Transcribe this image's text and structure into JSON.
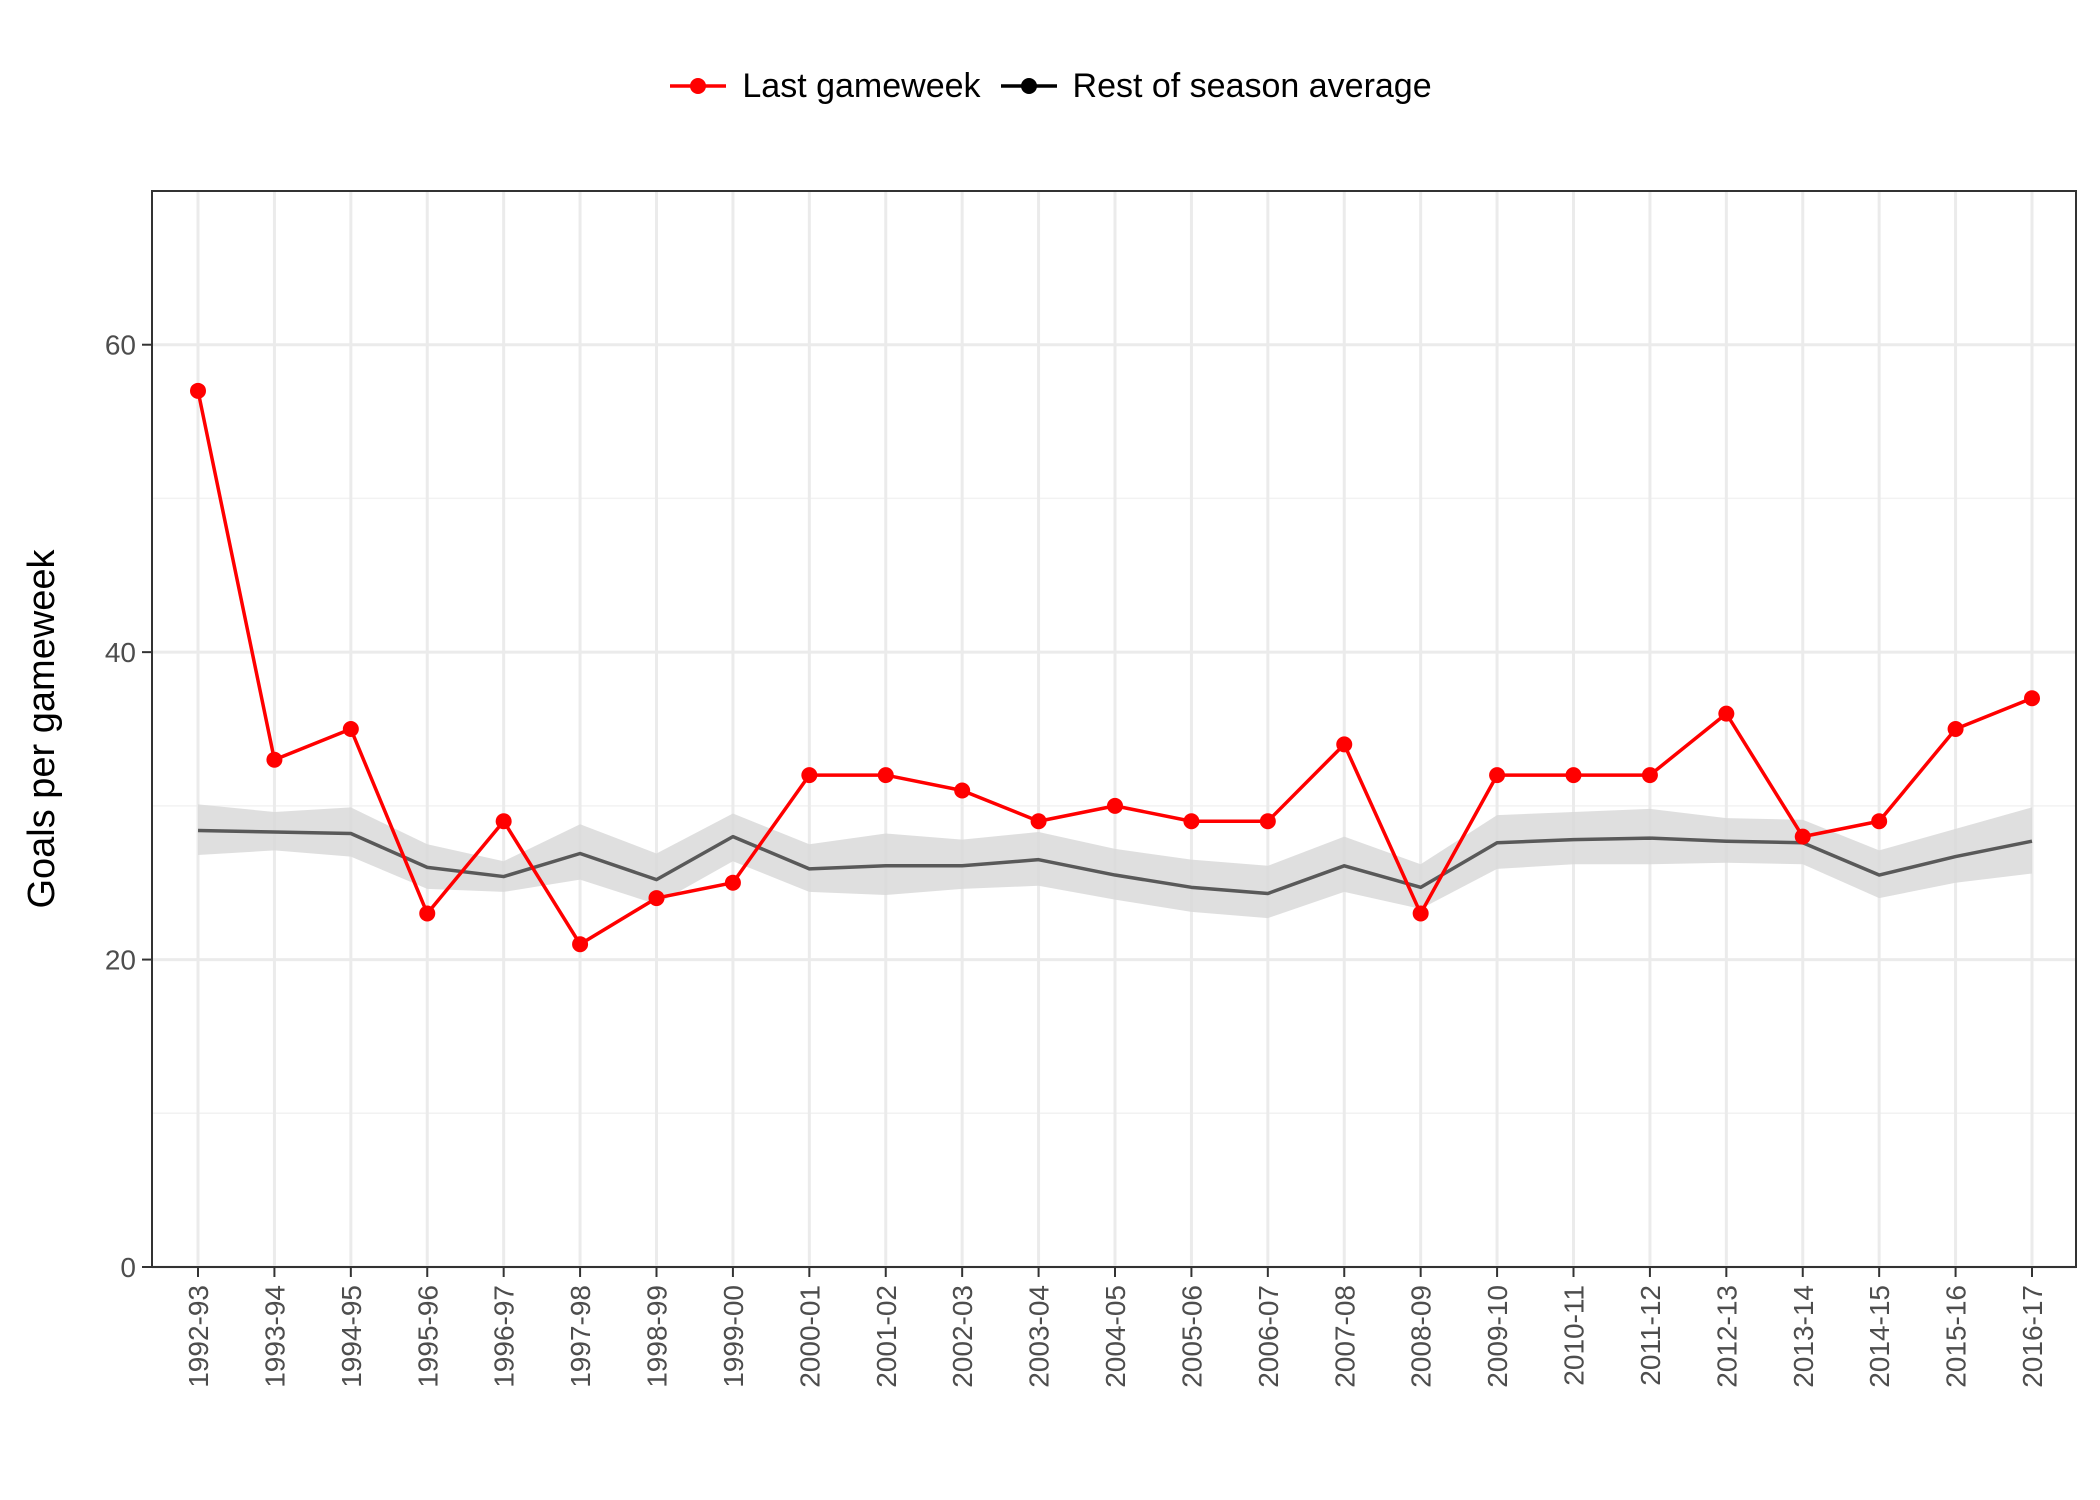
{
  "chart_data": {
    "type": "line",
    "title": "",
    "xlabel": "",
    "ylabel": "Goals per gameweek",
    "ylim": [
      0,
      70
    ],
    "yticks": [
      0,
      20,
      40,
      60
    ],
    "legend_position": "top",
    "grid": true,
    "categories": [
      "1992-93",
      "1993-94",
      "1994-95",
      "1995-96",
      "1996-97",
      "1997-98",
      "1998-99",
      "1999-00",
      "2000-01",
      "2001-02",
      "2002-03",
      "2003-04",
      "2004-05",
      "2005-06",
      "2006-07",
      "2007-08",
      "2008-09",
      "2009-10",
      "2010-11",
      "2011-12",
      "2012-13",
      "2013-14",
      "2014-15",
      "2015-16",
      "2016-17"
    ],
    "series": [
      {
        "name": "Last gameweek",
        "color": "#ff0000",
        "values": [
          57,
          33,
          35,
          23,
          29,
          21,
          24,
          25,
          32,
          32,
          31,
          29,
          30,
          29,
          29,
          34,
          23,
          32,
          32,
          32,
          36,
          28,
          29,
          35,
          37
        ]
      },
      {
        "name": "Rest of season average",
        "color": "#595959",
        "values": [
          28.4,
          28.3,
          28.2,
          26.0,
          25.4,
          26.9,
          25.2,
          28.0,
          25.9,
          26.1,
          26.1,
          26.5,
          25.5,
          24.7,
          24.3,
          26.1,
          24.7,
          27.6,
          27.8,
          27.9,
          27.7,
          27.6,
          25.5,
          26.7,
          27.7
        ],
        "band_lower": [
          26.8,
          27.1,
          26.7,
          24.6,
          24.4,
          25.2,
          23.6,
          26.4,
          24.4,
          24.2,
          24.6,
          24.8,
          23.9,
          23.1,
          22.7,
          24.4,
          23.3,
          25.9,
          26.2,
          26.2,
          26.3,
          26.2,
          24.0,
          25.0,
          25.6
        ],
        "band_upper": [
          30.1,
          29.6,
          29.9,
          27.5,
          26.4,
          28.8,
          26.9,
          29.5,
          27.5,
          28.2,
          27.8,
          28.3,
          27.2,
          26.5,
          26.1,
          28.0,
          26.2,
          29.4,
          29.6,
          29.8,
          29.2,
          29.1,
          27.1,
          28.5,
          29.9
        ],
        "band_color": "#d9d9d9"
      }
    ]
  }
}
